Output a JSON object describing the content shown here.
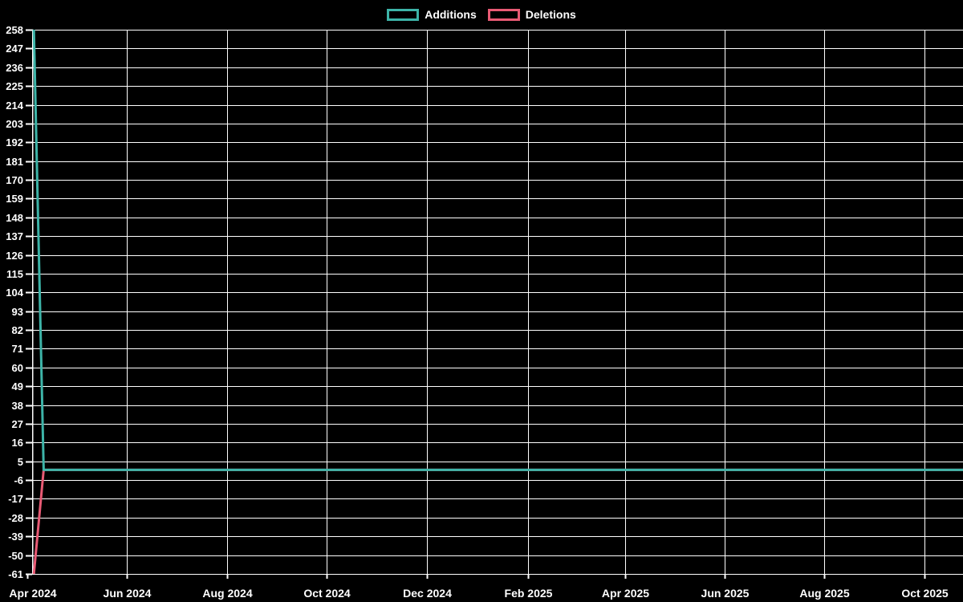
{
  "chart_data": {
    "type": "line",
    "title": "",
    "background_color": "#000000",
    "text_color": "#ffffff",
    "grid": {
      "visible": true,
      "color": "#ffffff"
    },
    "legend_position": "top-center",
    "x_axis": {
      "tick_labels": [
        "Apr 2024",
        "Jun 2024",
        "Aug 2024",
        "Oct 2024",
        "Dec 2024",
        "Feb 2025",
        "Apr 2025",
        "Jun 2025",
        "Aug 2025",
        "Oct 2025"
      ],
      "tick_offsets_days": [
        0,
        61,
        122,
        183,
        244,
        306,
        365,
        426,
        487,
        548
      ],
      "range_days": [
        0,
        572
      ]
    },
    "y_axis": {
      "min": -61,
      "max": 258,
      "tick_step": 11,
      "ticks": [
        258,
        247,
        236,
        225,
        214,
        203,
        192,
        181,
        170,
        159,
        148,
        137,
        126,
        115,
        104,
        93,
        82,
        71,
        60,
        49,
        38,
        27,
        16,
        5,
        -6,
        -17,
        -28,
        -39,
        -50,
        -61
      ]
    },
    "series": [
      {
        "name": "Additions",
        "color": "#3db4a8",
        "points": [
          {
            "day": 4,
            "value": 258
          },
          {
            "day": 10,
            "value": 0
          },
          {
            "day": 572,
            "value": 0
          }
        ]
      },
      {
        "name": "Deletions",
        "color": "#e85a74",
        "points": [
          {
            "day": 4,
            "value": -61
          },
          {
            "day": 10,
            "value": 0
          },
          {
            "day": 572,
            "value": 0
          }
        ]
      }
    ]
  }
}
